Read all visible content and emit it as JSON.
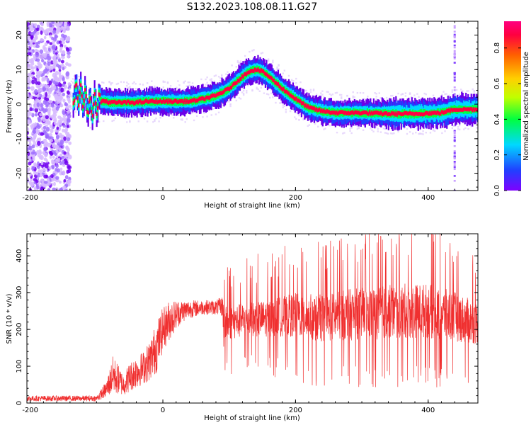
{
  "title": "S132.2023.108.08.11.G27",
  "chart_data": [
    {
      "type": "heatmap",
      "xlabel": "Height of straight line (km)",
      "ylabel": "Frequency (Hz)",
      "xlim": [
        -205,
        475
      ],
      "ylim": [
        -25,
        24
      ],
      "x_ticks": [
        -200,
        0,
        200,
        400
      ],
      "y_ticks": [
        -20,
        -10,
        0,
        10,
        20
      ],
      "colorbar": {
        "label": "Normalized spectral amplitude",
        "range": [
          0.0,
          0.95
        ],
        "ticks": [
          0.0,
          0.2,
          0.4,
          0.6,
          0.8
        ],
        "colormap": "rainbow",
        "colors": [
          "#7f00ff",
          "#2040ff",
          "#00d8ff",
          "#00ff40",
          "#c0ff00",
          "#ffd000",
          "#ff6000",
          "#ff0040",
          "#ff0080"
        ]
      },
      "ridge": {
        "x": [
          -130,
          -120,
          -110,
          -100,
          -90,
          -80,
          -60,
          -40,
          -20,
          0,
          20,
          40,
          60,
          80,
          100,
          120,
          130,
          140,
          150,
          160,
          180,
          200,
          220,
          240,
          260,
          300,
          340,
          380,
          420,
          440,
          460,
          475
        ],
        "y": [
          3,
          2,
          -1,
          0,
          1,
          0.5,
          0.5,
          0.5,
          0.8,
          0.8,
          0.8,
          0.8,
          1.5,
          2.5,
          4.5,
          8,
          9.5,
          10,
          9.5,
          8,
          4.5,
          1.5,
          -1,
          -2,
          -2.5,
          -2.5,
          -2.8,
          -2.8,
          -2.5,
          -1.5,
          -1.5,
          -1.5
        ]
      },
      "background_noise_region": [
        -205,
        -140
      ],
      "vertical_artifact_x": 440
    },
    {
      "type": "line",
      "xlabel": "Height of straight line (km)",
      "ylabel": "SNR (10 * v/v)",
      "xlim": [
        -205,
        475
      ],
      "ylim": [
        0,
        460
      ],
      "x_ticks": [
        -200,
        0,
        200,
        400
      ],
      "y_ticks": [
        0,
        100,
        200,
        300,
        400
      ],
      "line_color": "#f03030",
      "envelope": {
        "x": [
          -205,
          -150,
          -100,
          -85,
          -75,
          -60,
          -50,
          -40,
          -30,
          -20,
          -10,
          0,
          10,
          20,
          30,
          40,
          60,
          80,
          90,
          92,
          120,
          160,
          200,
          240,
          280,
          320,
          360,
          400,
          440,
          475
        ],
        "low": [
          5,
          5,
          5,
          15,
          25,
          20,
          30,
          40,
          50,
          60,
          80,
          140,
          170,
          200,
          220,
          230,
          240,
          240,
          235,
          120,
          130,
          130,
          120,
          100,
          100,
          100,
          100,
          100,
          100,
          100
        ],
        "high": [
          20,
          20,
          20,
          60,
          130,
          80,
          110,
          130,
          140,
          170,
          220,
          260,
          280,
          280,
          280,
          280,
          280,
          280,
          290,
          310,
          320,
          330,
          360,
          360,
          380,
          390,
          400,
          400,
          370,
          330
        ]
      }
    }
  ]
}
